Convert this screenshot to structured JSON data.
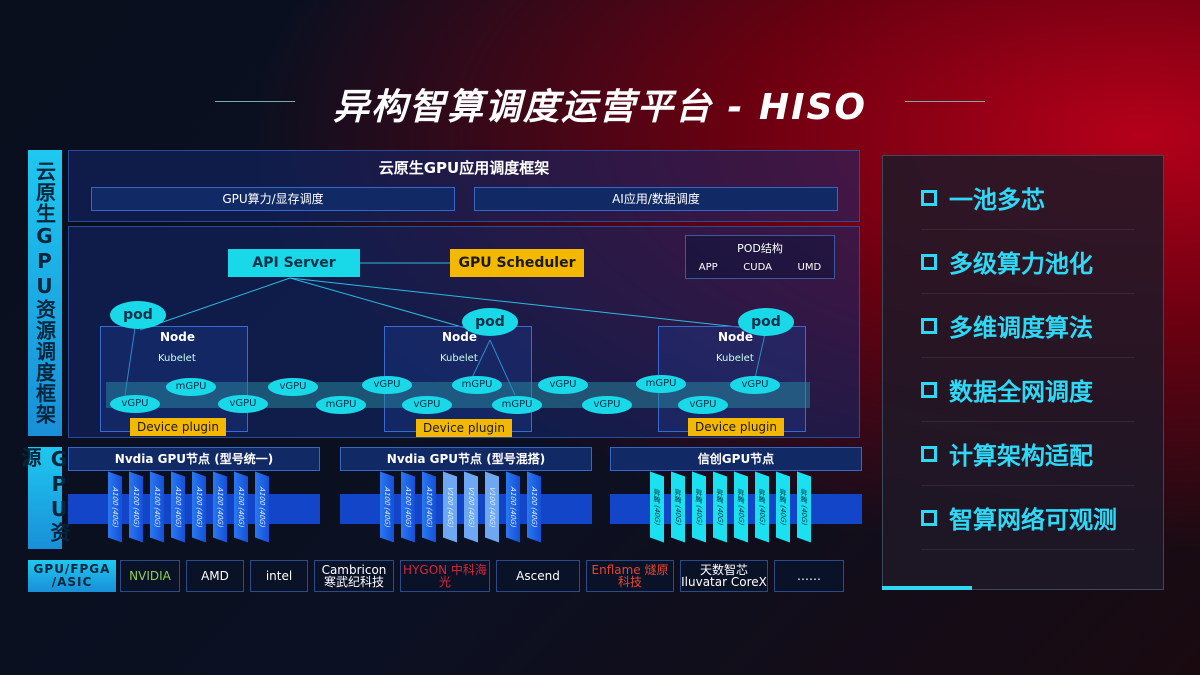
{
  "title": "异构智算调度运营平台 - HISO",
  "side_labels": {
    "framework": "云原生GPU资源调度框架",
    "resources": "GPU资源",
    "vendors": "GPU/FPGA /ASIC"
  },
  "framework": {
    "header": "云原生GPU应用调度框架",
    "bar_left": "GPU算力/显存调度",
    "bar_right": "AI应用/数据调度",
    "api_server": "API Server",
    "gpu_scheduler": "GPU Scheduler",
    "pod_struct": {
      "title": "POD结构",
      "items": [
        "APP",
        "CUDA",
        "UMD"
      ]
    },
    "pod": "pod",
    "node": "Node",
    "kubelet": "Kubelet",
    "vgpu": "vGPU",
    "mgpu": "mGPU",
    "device_plugin": "Device plugin"
  },
  "gpu_nodes": [
    {
      "title": "Nvdia GPU节点 (型号统一)",
      "cards": [
        "A100 (40G)",
        "A100 (40G)",
        "A100 (40G)",
        "A100 (40G)",
        "A100 (40G)",
        "A100 (40G)",
        "A100 (40G)",
        "A100 (40G)"
      ]
    },
    {
      "title": "Nvdia GPU节点 (型号混搭)",
      "cards": [
        "A100 (40G)",
        "A100 (40G)",
        "A100 (40G)",
        "V100 (40G)",
        "V100 (40G)",
        "V100 (40G)",
        "A100 (40G)",
        "A100 (40G)"
      ]
    },
    {
      "title": "信创GPU节点",
      "cards": [
        "昇腾 (40G)",
        "昇腾 (40G)",
        "昇腾 (40G)",
        "昇腾 (40G)",
        "昇腾 (40G)",
        "昇腾 (40G)",
        "昇腾 (40G)",
        "昇腾 (40G)"
      ]
    }
  ],
  "vendors": [
    "NVIDIA",
    "AMD",
    "intel",
    "Cambricon 寒武纪科技",
    "HYGON 中科海光",
    "Ascend",
    "Enflame 燧原科技",
    "天数智芯 Iluvatar CoreX",
    "……"
  ],
  "features": [
    "一池多芯",
    "多级算力池化",
    "多维调度算法",
    "数据全网调度",
    "计算架构适配",
    "智算网络可观测"
  ],
  "colors": {
    "accent": "#19d9e8",
    "device_plugin": "#f5b800",
    "card": "#1450d8"
  }
}
